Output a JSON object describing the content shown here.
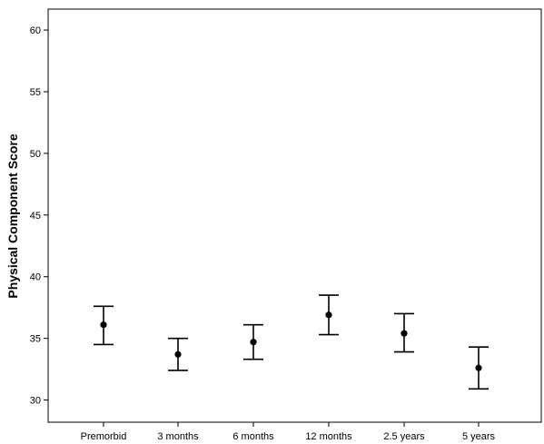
{
  "chart_data": {
    "type": "errorbar",
    "title": "",
    "xlabel": "",
    "ylabel": "Physical Component Score",
    "ylim": [
      28.2,
      61.7
    ],
    "yticks": [
      30,
      35,
      40,
      45,
      50,
      55,
      60
    ],
    "grid": false,
    "categories": [
      "Premorbid",
      "3 months",
      "6 months",
      "12 months",
      "2.5 years",
      "5 years"
    ],
    "mean": [
      36.1,
      33.7,
      34.7,
      36.9,
      35.4,
      32.6
    ],
    "lower": [
      34.5,
      32.4,
      33.3,
      35.3,
      33.9,
      30.9
    ],
    "upper": [
      37.6,
      35.0,
      36.1,
      38.5,
      37.0,
      34.3
    ],
    "colors": {
      "marker": "#000000",
      "frame": "#000000",
      "background": "#ffffff"
    }
  }
}
